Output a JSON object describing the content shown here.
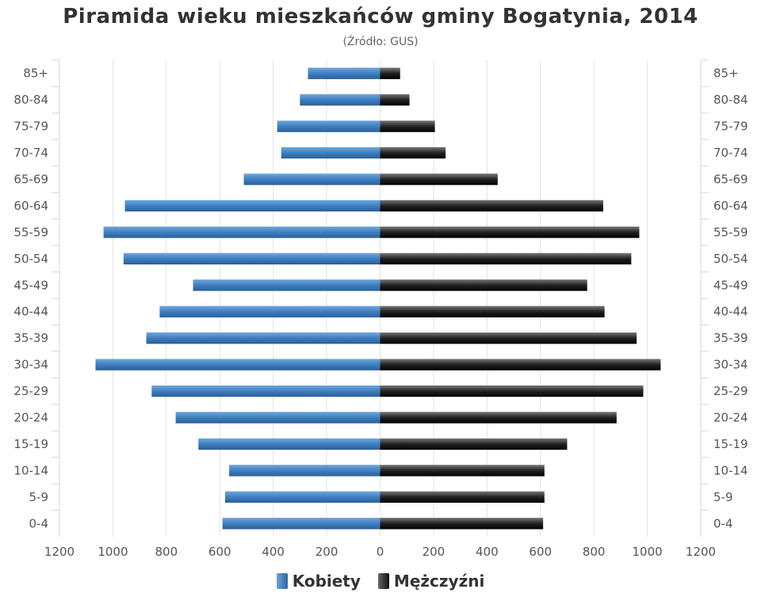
{
  "title": "Piramida wieku mieszkańców gminy Bogatynia, 2014",
  "subtitle": "(Źródło: GUS)",
  "chart_data": {
    "type": "bar",
    "orientation": "horizontal-population-pyramid",
    "categories": [
      "85+",
      "80-84",
      "75-79",
      "70-74",
      "65-69",
      "60-64",
      "55-59",
      "50-54",
      "45-49",
      "40-44",
      "35-39",
      "30-34",
      "25-29",
      "20-24",
      "15-19",
      "10-14",
      "5-9",
      "0-4"
    ],
    "series": [
      {
        "name": "Kobiety",
        "color": "#3d7ab8",
        "values": [
          270,
          300,
          385,
          370,
          510,
          955,
          1035,
          960,
          700,
          825,
          875,
          1065,
          855,
          765,
          680,
          565,
          580,
          590
        ]
      },
      {
        "name": "Mężczyźni",
        "color": "#222222",
        "values": [
          75,
          110,
          205,
          245,
          440,
          835,
          970,
          940,
          775,
          840,
          960,
          1050,
          985,
          885,
          700,
          615,
          615,
          610
        ]
      }
    ],
    "xlim": [
      -1200,
      1200
    ],
    "x_ticks": [
      "1200",
      "1000",
      "800",
      "600",
      "400",
      "200",
      "0",
      "200",
      "400",
      "600",
      "800",
      "1000",
      "1200"
    ],
    "grid": true,
    "legend_position": "bottom-center"
  }
}
